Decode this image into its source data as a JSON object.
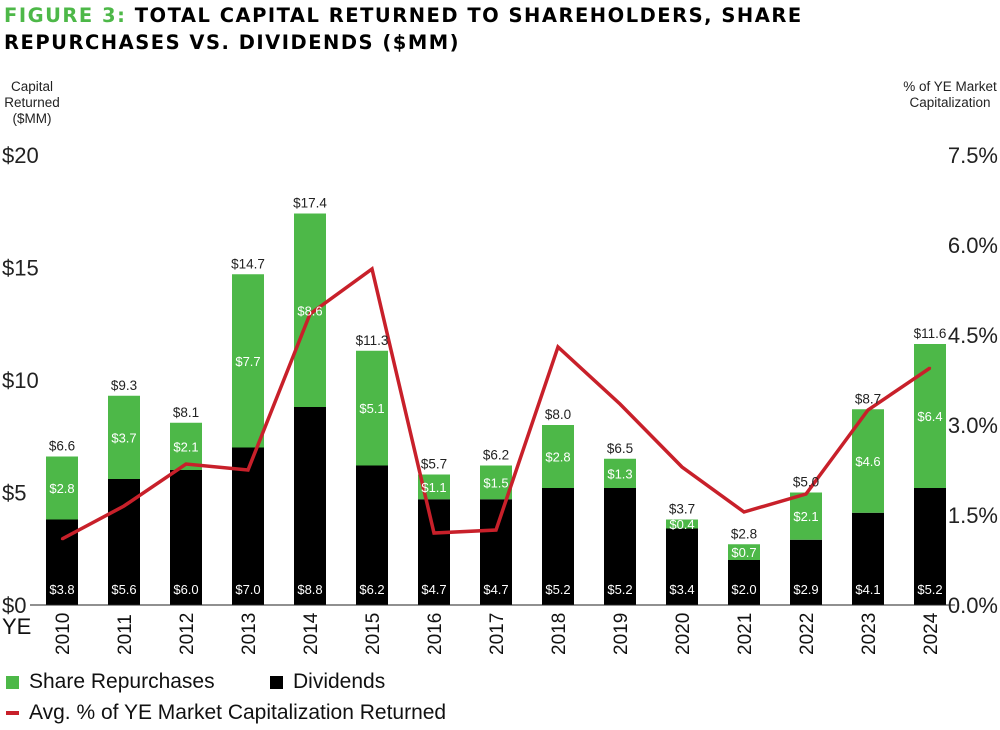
{
  "title": {
    "prefix": "FIGURE 3:",
    "line1": "TOTAL CAPITAL RETURNED TO SHAREHOLDERS, SHARE",
    "line2": "REPURCHASES VS. DIVIDENDS ($MM)"
  },
  "colors": {
    "repurchases": "#4db848",
    "dividends": "#000000",
    "line": "#c8202a",
    "title_prefix": "#4db848"
  },
  "chart_data": {
    "type": "bar",
    "stacked": true,
    "categories": [
      "2010",
      "2011",
      "2012",
      "2013",
      "2014",
      "2015",
      "2016",
      "2017",
      "2018",
      "2019",
      "2020",
      "2021",
      "2022",
      "2023",
      "2024"
    ],
    "x_axis_label": "YE",
    "y_axis_left": {
      "label": "Capital Returned ($MM)",
      "ylim": [
        0,
        20
      ],
      "ticks": [
        0,
        5,
        10,
        15,
        20
      ],
      "tick_labels": [
        "$0",
        "$5",
        "$10",
        "$15",
        "$20"
      ]
    },
    "y_axis_right": {
      "label": "% of YE Market Capitalization",
      "ylim": [
        0,
        7.5
      ],
      "ticks": [
        0,
        1.5,
        3.0,
        4.5,
        6.0,
        7.5
      ],
      "tick_labels": [
        "0.0%",
        "1.5%",
        "3.0%",
        "4.5%",
        "6.0%",
        "7.5%"
      ]
    },
    "series": [
      {
        "name": "Dividends",
        "axis": "left",
        "values": [
          3.8,
          5.6,
          6.0,
          7.0,
          8.8,
          6.2,
          4.7,
          4.7,
          5.2,
          5.2,
          3.4,
          2.0,
          2.9,
          4.1,
          5.2
        ],
        "labels": [
          "$3.8",
          "$5.6",
          "$6.0",
          "$7.0",
          "$8.8",
          "$6.2",
          "$4.7",
          "$4.7",
          "$5.2",
          "$5.2",
          "$3.4",
          "$2.0",
          "$2.9",
          "$4.1",
          "$5.2"
        ]
      },
      {
        "name": "Share Repurchases",
        "axis": "left",
        "values": [
          2.8,
          3.7,
          2.1,
          7.7,
          8.6,
          5.1,
          1.1,
          1.5,
          2.8,
          1.3,
          0.4,
          0.7,
          2.1,
          4.6,
          6.4
        ],
        "labels": [
          "$2.8",
          "$3.7",
          "$2.1",
          "$7.7",
          "$8.6",
          "$5.1",
          "$1.1",
          "$1.5",
          "$2.8",
          "$1.3",
          "$0.4",
          "$0.7",
          "$2.1",
          "$4.6",
          "$6.4"
        ]
      },
      {
        "name": "Avg. % of YE Market Capitalization Returned",
        "type": "line",
        "axis": "right",
        "values": [
          1.1,
          1.65,
          2.35,
          2.25,
          4.85,
          5.6,
          1.2,
          1.25,
          4.3,
          3.35,
          2.3,
          1.55,
          1.85,
          3.25,
          3.95
        ]
      }
    ],
    "total_labels": [
      "$6.6",
      "$9.3",
      "$8.1",
      "$14.7",
      "$17.4",
      "$11.3",
      "$5.7",
      "$6.2",
      "$8.0",
      "$6.5",
      "$3.7",
      "$2.8",
      "$5.0",
      "$8.7",
      "$11.6"
    ],
    "grid": false,
    "legend": {
      "placement": "bottom-left",
      "items": [
        "Share Repurchases",
        "Dividends",
        "Avg. % of YE Market Capitalization Returned"
      ]
    }
  }
}
